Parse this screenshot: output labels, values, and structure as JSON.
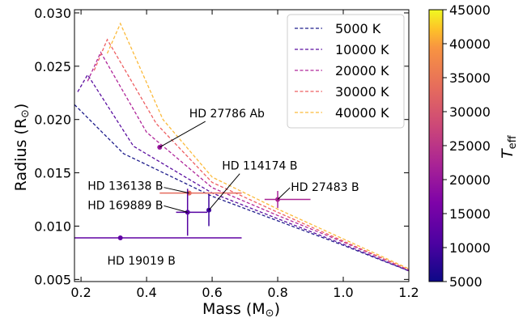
{
  "chart_data": {
    "type": "line",
    "xlabel": "Mass (M",
    "xlabel_sub": "⊙",
    "xlabel_end": ")",
    "ylabel": "Radius (R",
    "ylabel_sub": "⊙",
    "ylabel_end": ")",
    "xlim": [
      0.18,
      1.2
    ],
    "ylim": [
      0.0048,
      0.0303
    ],
    "x_ticks": [
      0.2,
      0.4,
      0.6,
      0.8,
      1.0,
      1.2
    ],
    "x_tick_labels": [
      "0.2",
      "0.4",
      "0.6",
      "0.8",
      "1.0",
      "1.2"
    ],
    "y_ticks": [
      0.005,
      0.01,
      0.015,
      0.02,
      0.025,
      0.03
    ],
    "y_tick_labels": [
      "0.005",
      "0.010",
      "0.015",
      "0.020",
      "0.025",
      "0.030"
    ],
    "grid": false,
    "legend_position": "top-right",
    "series": [
      {
        "name": "5000 K",
        "color": "#1f1d8c",
        "x": [
          0.18,
          0.33,
          0.6,
          0.8,
          1.0,
          1.2
        ],
        "y": [
          0.0214,
          0.0168,
          0.0128,
          0.0105,
          0.0082,
          0.0058
        ]
      },
      {
        "name": "10000 K",
        "color": "#5a0fa0",
        "x": [
          0.19,
          0.22,
          0.36,
          0.6,
          0.8,
          1.0,
          1.2
        ],
        "y": [
          0.0226,
          0.0242,
          0.0175,
          0.0131,
          0.0107,
          0.0083,
          0.0058
        ]
      },
      {
        "name": "20000 K",
        "color": "#b0279a",
        "x": [
          0.22,
          0.26,
          0.4,
          0.6,
          0.8,
          1.0,
          1.2
        ],
        "y": [
          0.0236,
          0.0263,
          0.0188,
          0.0136,
          0.011,
          0.0085,
          0.0059
        ]
      },
      {
        "name": "30000 K",
        "color": "#ee5f62",
        "x": [
          0.24,
          0.28,
          0.43,
          0.6,
          0.8,
          1.0,
          1.2
        ],
        "y": [
          0.0246,
          0.0275,
          0.0196,
          0.0141,
          0.0113,
          0.0086,
          0.0059
        ]
      },
      {
        "name": "40000 K",
        "color": "#fbba3b",
        "x": [
          0.28,
          0.32,
          0.45,
          0.6,
          0.8,
          1.0,
          1.2
        ],
        "y": [
          0.0262,
          0.029,
          0.02,
          0.0146,
          0.0116,
          0.0088,
          0.006
        ]
      }
    ],
    "stars": [
      {
        "label": "HD 27786 Ab",
        "mass": 0.44,
        "radius": 0.0174,
        "mass_err": [
          0.0,
          0.0
        ],
        "radius_err": [
          0.0,
          0.0
        ],
        "teff": 18000,
        "label_x": 0.53,
        "label_y": 0.0202
      },
      {
        "label": "HD 114174 B",
        "mass": 0.59,
        "radius": 0.0115,
        "mass_err": [
          0.0,
          0.0
        ],
        "radius_err": [
          0.0015,
          0.0015
        ],
        "teff": 9000,
        "label_x": 0.63,
        "label_y": 0.0153
      },
      {
        "label": "HD 27483 B",
        "mass": 0.8,
        "radius": 0.0125,
        "mass_err": [
          0.04,
          0.1
        ],
        "radius_err": [
          0.0008,
          0.0008
        ],
        "teff": 20000,
        "label_x": 0.84,
        "label_y": 0.0133
      },
      {
        "label": "HD 136138 B",
        "mass": 0.53,
        "radius": 0.0131,
        "mass_err": [
          0.09,
          0.16
        ],
        "radius_err": [
          0.0,
          0.0
        ],
        "teff": 30000,
        "label_x": 0.22,
        "label_y": 0.0134
      },
      {
        "label": "HD 169889 B",
        "mass": 0.525,
        "radius": 0.0113,
        "mass_err": [
          0.035,
          0.06
        ],
        "radius_err": [
          0.0022,
          0.0022
        ],
        "teff": 11000,
        "label_x": 0.22,
        "label_y": 0.0116
      },
      {
        "label": "HD 19019 B",
        "mass": 0.32,
        "radius": 0.0089,
        "mass_err": [
          0.14,
          0.37
        ],
        "radius_err": [
          0.0,
          0.0
        ],
        "teff": 12000,
        "label_x": 0.28,
        "label_y": 0.0064
      }
    ],
    "colorbar": {
      "label": "T",
      "label_sub": "eff",
      "min": 5000,
      "max": 45000,
      "ticks": [
        5000,
        10000,
        15000,
        20000,
        25000,
        30000,
        35000,
        40000,
        45000
      ],
      "tick_labels": [
        "5000",
        "10000",
        "15000",
        "20000",
        "25000",
        "30000",
        "35000",
        "40000",
        "45000"
      ],
      "colormap": "plasma"
    }
  }
}
